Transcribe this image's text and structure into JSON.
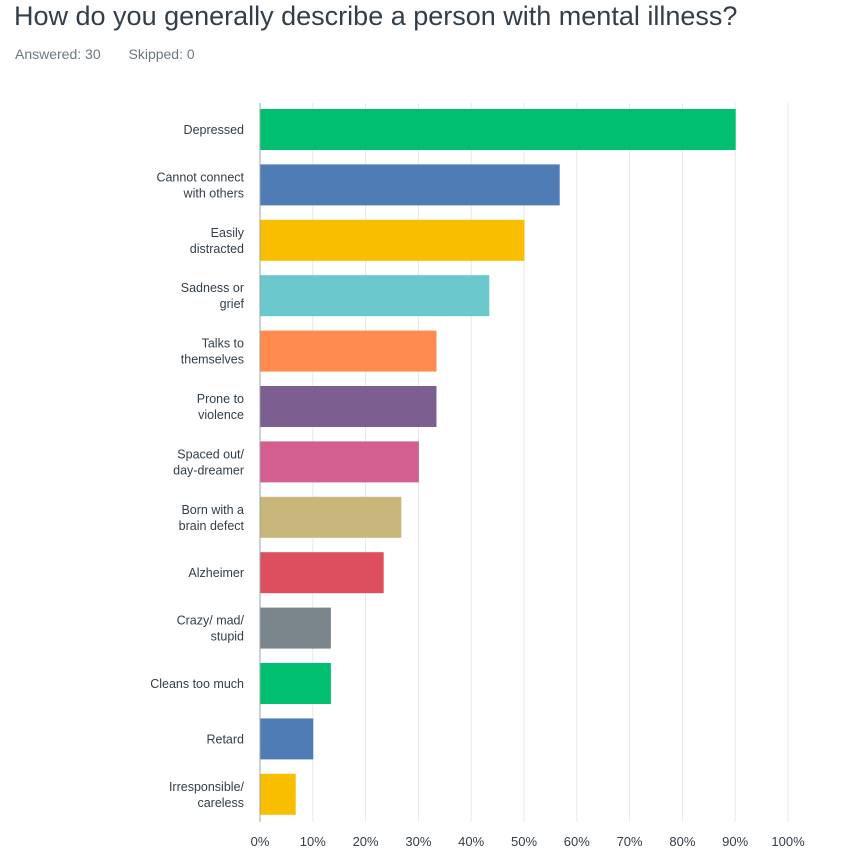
{
  "question": {
    "title": "How do you generally describe a person with mental illness?",
    "answered_label": "Answered: 30",
    "skipped_label": "Skipped: 0"
  },
  "chart_data": {
    "type": "bar",
    "orientation": "horizontal",
    "categories": [
      [
        "Depressed"
      ],
      [
        "Cannot connect",
        "with others"
      ],
      [
        "Easily",
        "distracted"
      ],
      [
        "Sadness or",
        "grief"
      ],
      [
        "Talks to",
        "themselves"
      ],
      [
        "Prone to",
        "violence"
      ],
      [
        "Spaced out/",
        "day-dreamer"
      ],
      [
        "Born with a",
        "brain defect"
      ],
      [
        "Alzheimer"
      ],
      [
        "Crazy/ mad/",
        "stupid"
      ],
      [
        "Cleans too much"
      ],
      [
        "Retard"
      ],
      [
        "Irresponsible/",
        "careless"
      ]
    ],
    "values": [
      90.0,
      56.67,
      50.0,
      43.33,
      33.33,
      33.33,
      30.0,
      26.67,
      23.33,
      13.33,
      13.33,
      10.0,
      6.67
    ],
    "colors": [
      "#00bf6f",
      "#507cb6",
      "#f9be00",
      "#6bc8cd",
      "#ff8b4f",
      "#7d5e90",
      "#d25f90",
      "#c8b67b",
      "#dd4e5e",
      "#7b868c",
      "#00bf6f",
      "#507cb6",
      "#f9be00"
    ],
    "xlim": [
      0,
      100
    ],
    "xticks": [
      "0%",
      "10%",
      "20%",
      "30%",
      "40%",
      "50%",
      "60%",
      "70%",
      "80%",
      "90%",
      "100%"
    ],
    "grid": true,
    "title": "",
    "xlabel": "",
    "ylabel": ""
  }
}
